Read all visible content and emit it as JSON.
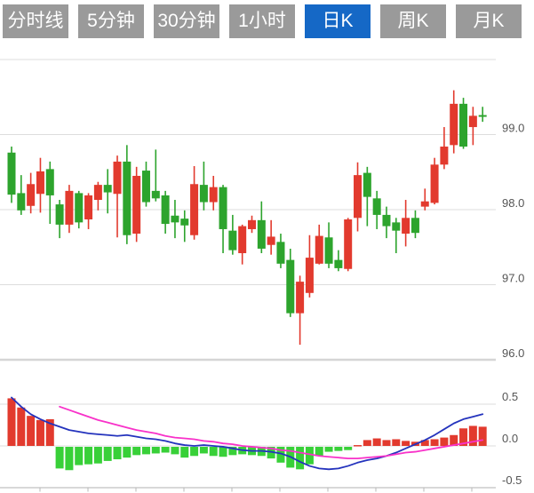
{
  "tabs": {
    "items": [
      {
        "id": "timeline",
        "label": "分时线"
      },
      {
        "id": "5min",
        "label": "5分钟"
      },
      {
        "id": "30min",
        "label": "30分钟"
      },
      {
        "id": "1hour",
        "label": "1小时"
      },
      {
        "id": "daily-k",
        "label": "日K"
      },
      {
        "id": "weekly-k",
        "label": "周K"
      },
      {
        "id": "monthly-k",
        "label": "月K"
      }
    ],
    "active_index": 4,
    "inactive_bg": "#9a9a9a",
    "active_bg": "#1568c6",
    "text_color": "#ffffff"
  },
  "chart_data": [
    {
      "type": "candlestick",
      "title": "",
      "xlabel": "",
      "ylabel": "",
      "ylim": [
        96.0,
        100.0
      ],
      "yticks": [
        99.0,
        98.0,
        97.0,
        96.0
      ],
      "ytick_labels": [
        "99.0",
        "98.0",
        "97.0",
        "96.0"
      ],
      "grid": true,
      "grid_color": "#dddddd",
      "label_color": "#555555",
      "up_color": "#e23a2e",
      "down_color": "#2da42d",
      "candles": [
        {
          "o": 98.76,
          "h": 98.84,
          "l": 98.09,
          "c": 98.2
        },
        {
          "o": 98.22,
          "h": 98.46,
          "l": 97.93,
          "c": 97.99
        },
        {
          "o": 98.05,
          "h": 98.49,
          "l": 97.95,
          "c": 98.34
        },
        {
          "o": 98.21,
          "h": 98.69,
          "l": 97.96,
          "c": 98.51
        },
        {
          "o": 98.54,
          "h": 98.64,
          "l": 97.81,
          "c": 98.19
        },
        {
          "o": 98.07,
          "h": 98.13,
          "l": 97.62,
          "c": 97.8
        },
        {
          "o": 97.8,
          "h": 98.33,
          "l": 97.69,
          "c": 98.25
        },
        {
          "o": 98.22,
          "h": 98.25,
          "l": 97.75,
          "c": 97.83
        },
        {
          "o": 97.87,
          "h": 98.22,
          "l": 97.74,
          "c": 98.19
        },
        {
          "o": 98.13,
          "h": 98.37,
          "l": 97.99,
          "c": 98.33
        },
        {
          "o": 98.33,
          "h": 98.54,
          "l": 97.95,
          "c": 98.23
        },
        {
          "o": 98.21,
          "h": 98.72,
          "l": 97.63,
          "c": 98.64
        },
        {
          "o": 98.64,
          "h": 98.86,
          "l": 97.54,
          "c": 97.66
        },
        {
          "o": 97.68,
          "h": 98.57,
          "l": 97.57,
          "c": 98.45
        },
        {
          "o": 98.52,
          "h": 98.64,
          "l": 98.04,
          "c": 98.1
        },
        {
          "o": 98.25,
          "h": 98.8,
          "l": 98.11,
          "c": 98.15
        },
        {
          "o": 98.19,
          "h": 98.25,
          "l": 97.68,
          "c": 97.81
        },
        {
          "o": 97.92,
          "h": 98.13,
          "l": 97.62,
          "c": 97.83
        },
        {
          "o": 97.88,
          "h": 97.99,
          "l": 97.57,
          "c": 97.79
        },
        {
          "o": 97.66,
          "h": 98.58,
          "l": 97.6,
          "c": 98.34
        },
        {
          "o": 98.33,
          "h": 98.64,
          "l": 97.99,
          "c": 98.1
        },
        {
          "o": 98.1,
          "h": 98.45,
          "l": 97.99,
          "c": 98.3
        },
        {
          "o": 98.3,
          "h": 98.33,
          "l": 97.42,
          "c": 97.74
        },
        {
          "o": 97.72,
          "h": 97.93,
          "l": 97.4,
          "c": 97.46
        },
        {
          "o": 97.42,
          "h": 97.8,
          "l": 97.27,
          "c": 97.78
        },
        {
          "o": 97.74,
          "h": 97.92,
          "l": 97.69,
          "c": 97.86
        },
        {
          "o": 97.86,
          "h": 98.11,
          "l": 97.42,
          "c": 97.48
        },
        {
          "o": 97.53,
          "h": 97.86,
          "l": 97.4,
          "c": 97.64
        },
        {
          "o": 97.57,
          "h": 97.68,
          "l": 97.22,
          "c": 97.28
        },
        {
          "o": 97.33,
          "h": 97.48,
          "l": 96.57,
          "c": 96.62
        },
        {
          "o": 96.62,
          "h": 97.12,
          "l": 96.2,
          "c": 97.04
        },
        {
          "o": 96.89,
          "h": 97.66,
          "l": 96.83,
          "c": 97.36
        },
        {
          "o": 97.28,
          "h": 97.8,
          "l": 97.27,
          "c": 97.65
        },
        {
          "o": 97.63,
          "h": 97.83,
          "l": 97.22,
          "c": 97.28
        },
        {
          "o": 97.33,
          "h": 97.46,
          "l": 97.18,
          "c": 97.22
        },
        {
          "o": 97.21,
          "h": 97.89,
          "l": 97.18,
          "c": 97.87
        },
        {
          "o": 97.89,
          "h": 98.63,
          "l": 97.71,
          "c": 98.46
        },
        {
          "o": 98.49,
          "h": 98.57,
          "l": 97.78,
          "c": 98.17
        },
        {
          "o": 98.15,
          "h": 98.25,
          "l": 97.74,
          "c": 97.93
        },
        {
          "o": 97.93,
          "h": 98.04,
          "l": 97.62,
          "c": 97.78
        },
        {
          "o": 97.83,
          "h": 97.89,
          "l": 97.42,
          "c": 97.72
        },
        {
          "o": 97.68,
          "h": 98.13,
          "l": 97.51,
          "c": 97.89
        },
        {
          "o": 97.89,
          "h": 97.99,
          "l": 97.62,
          "c": 97.69
        },
        {
          "o": 98.04,
          "h": 98.28,
          "l": 97.99,
          "c": 98.11
        },
        {
          "o": 98.09,
          "h": 98.69,
          "l": 98.07,
          "c": 98.6
        },
        {
          "o": 98.6,
          "h": 99.1,
          "l": 98.54,
          "c": 98.84
        },
        {
          "o": 98.86,
          "h": 99.59,
          "l": 98.75,
          "c": 99.41
        },
        {
          "o": 99.41,
          "h": 99.49,
          "l": 98.81,
          "c": 98.84
        },
        {
          "o": 99.1,
          "h": 99.37,
          "l": 98.86,
          "c": 99.25
        },
        {
          "o": 99.26,
          "h": 99.37,
          "l": 99.17,
          "c": 99.24
        }
      ]
    },
    {
      "type": "macd",
      "title": "",
      "ylim": [
        -0.55,
        0.6
      ],
      "yticks": [
        0.5,
        0.0,
        -0.5
      ],
      "ytick_labels": [
        "0.5",
        "0.0",
        "-0.5"
      ],
      "grid": true,
      "grid_color": "#dddddd",
      "axis_color": "#cbcbcb",
      "label_color": "#555555",
      "x_tick_marks": 10,
      "hist_up_color": "#e23a2e",
      "hist_down_color": "#38d038",
      "dif_color": "#2433bd",
      "dea_color": "#f831c9",
      "hist": [
        0.57,
        0.46,
        0.36,
        0.31,
        0.32,
        -0.27,
        -0.29,
        -0.23,
        -0.22,
        -0.21,
        -0.18,
        -0.16,
        -0.14,
        -0.11,
        -0.1,
        -0.09,
        -0.08,
        -0.1,
        -0.14,
        -0.12,
        -0.09,
        -0.12,
        -0.13,
        -0.11,
        -0.1,
        -0.11,
        -0.12,
        -0.15,
        -0.2,
        -0.26,
        -0.28,
        -0.22,
        -0.12,
        -0.07,
        -0.06,
        -0.05,
        0.01,
        0.07,
        0.09,
        0.07,
        0.08,
        0.06,
        0.05,
        0.07,
        0.08,
        0.1,
        0.13,
        0.21,
        0.24,
        0.23
      ],
      "dif": [
        0.58,
        0.47,
        0.38,
        0.32,
        0.27,
        0.23,
        0.19,
        0.17,
        0.15,
        0.14,
        0.13,
        0.12,
        0.13,
        0.11,
        0.09,
        0.08,
        0.06,
        0.03,
        0.01,
        0.0,
        0.01,
        0.0,
        -0.01,
        -0.03,
        -0.05,
        -0.06,
        -0.06,
        -0.07,
        -0.09,
        -0.13,
        -0.19,
        -0.24,
        -0.27,
        -0.28,
        -0.27,
        -0.24,
        -0.2,
        -0.17,
        -0.15,
        -0.12,
        -0.08,
        -0.03,
        0.02,
        0.07,
        0.13,
        0.2,
        0.27,
        0.32,
        0.35,
        0.38
      ],
      "dea": [
        null,
        null,
        null,
        null,
        null,
        0.47,
        0.43,
        0.39,
        0.35,
        0.31,
        0.28,
        0.25,
        0.22,
        0.19,
        0.17,
        0.15,
        0.12,
        0.1,
        0.09,
        0.08,
        0.06,
        0.05,
        0.03,
        0.02,
        0.0,
        -0.01,
        -0.02,
        -0.03,
        -0.05,
        -0.06,
        -0.08,
        -0.1,
        -0.12,
        -0.13,
        -0.14,
        -0.15,
        -0.15,
        -0.14,
        -0.13,
        -0.12,
        -0.1,
        -0.08,
        -0.07,
        -0.05,
        -0.03,
        -0.01,
        0.01,
        0.03,
        0.05,
        0.07
      ]
    }
  ]
}
